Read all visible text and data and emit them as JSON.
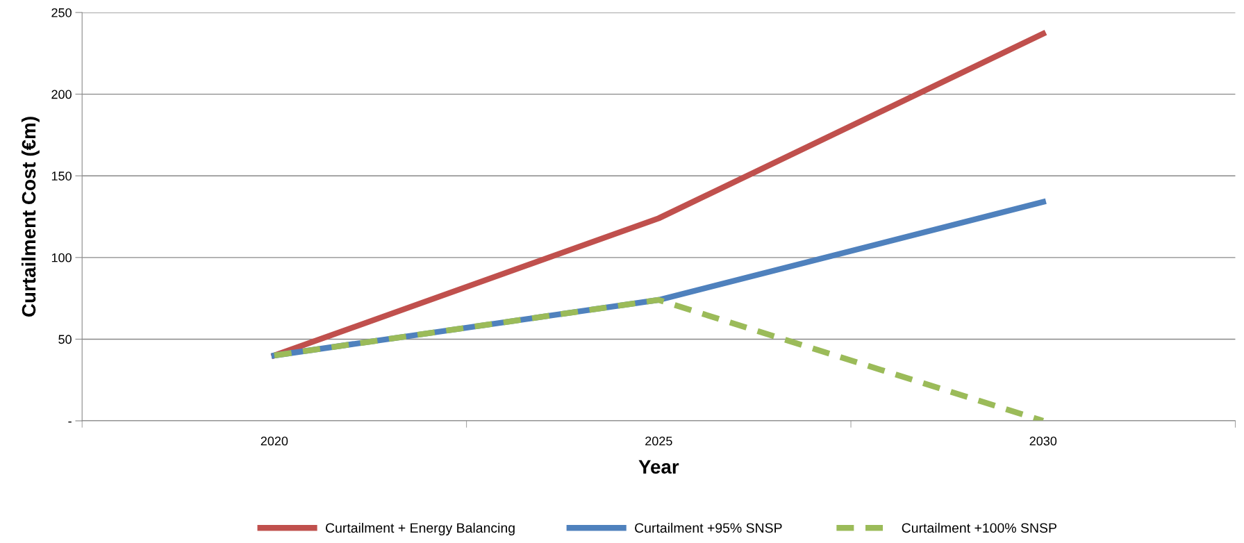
{
  "chart_data": {
    "type": "line",
    "xlabel": "Year",
    "ylabel": "Curtailment Cost (€m)",
    "categories": [
      "2020",
      "2025",
      "2030"
    ],
    "series": [
      {
        "name": "Curtailment + Energy Balancing",
        "color": "#c0504d",
        "values": [
          40,
          124,
          237
        ],
        "line_style": "solid"
      },
      {
        "name": "Curtailment +95% SNSP",
        "color": "#4f81bd",
        "values": [
          40,
          74,
          134
        ],
        "line_style": "solid"
      },
      {
        "name": "Curtailment +100% SNSP",
        "color": "#9bbb59",
        "values": [
          40,
          74,
          0
        ],
        "line_style": "dashed"
      }
    ],
    "ylim": [
      0,
      250
    ],
    "yticks": [
      {
        "value": 0,
        "label": "-"
      },
      50,
      100,
      150,
      200,
      250
    ],
    "grid": "y",
    "legend": "bottom",
    "marker": "none"
  }
}
